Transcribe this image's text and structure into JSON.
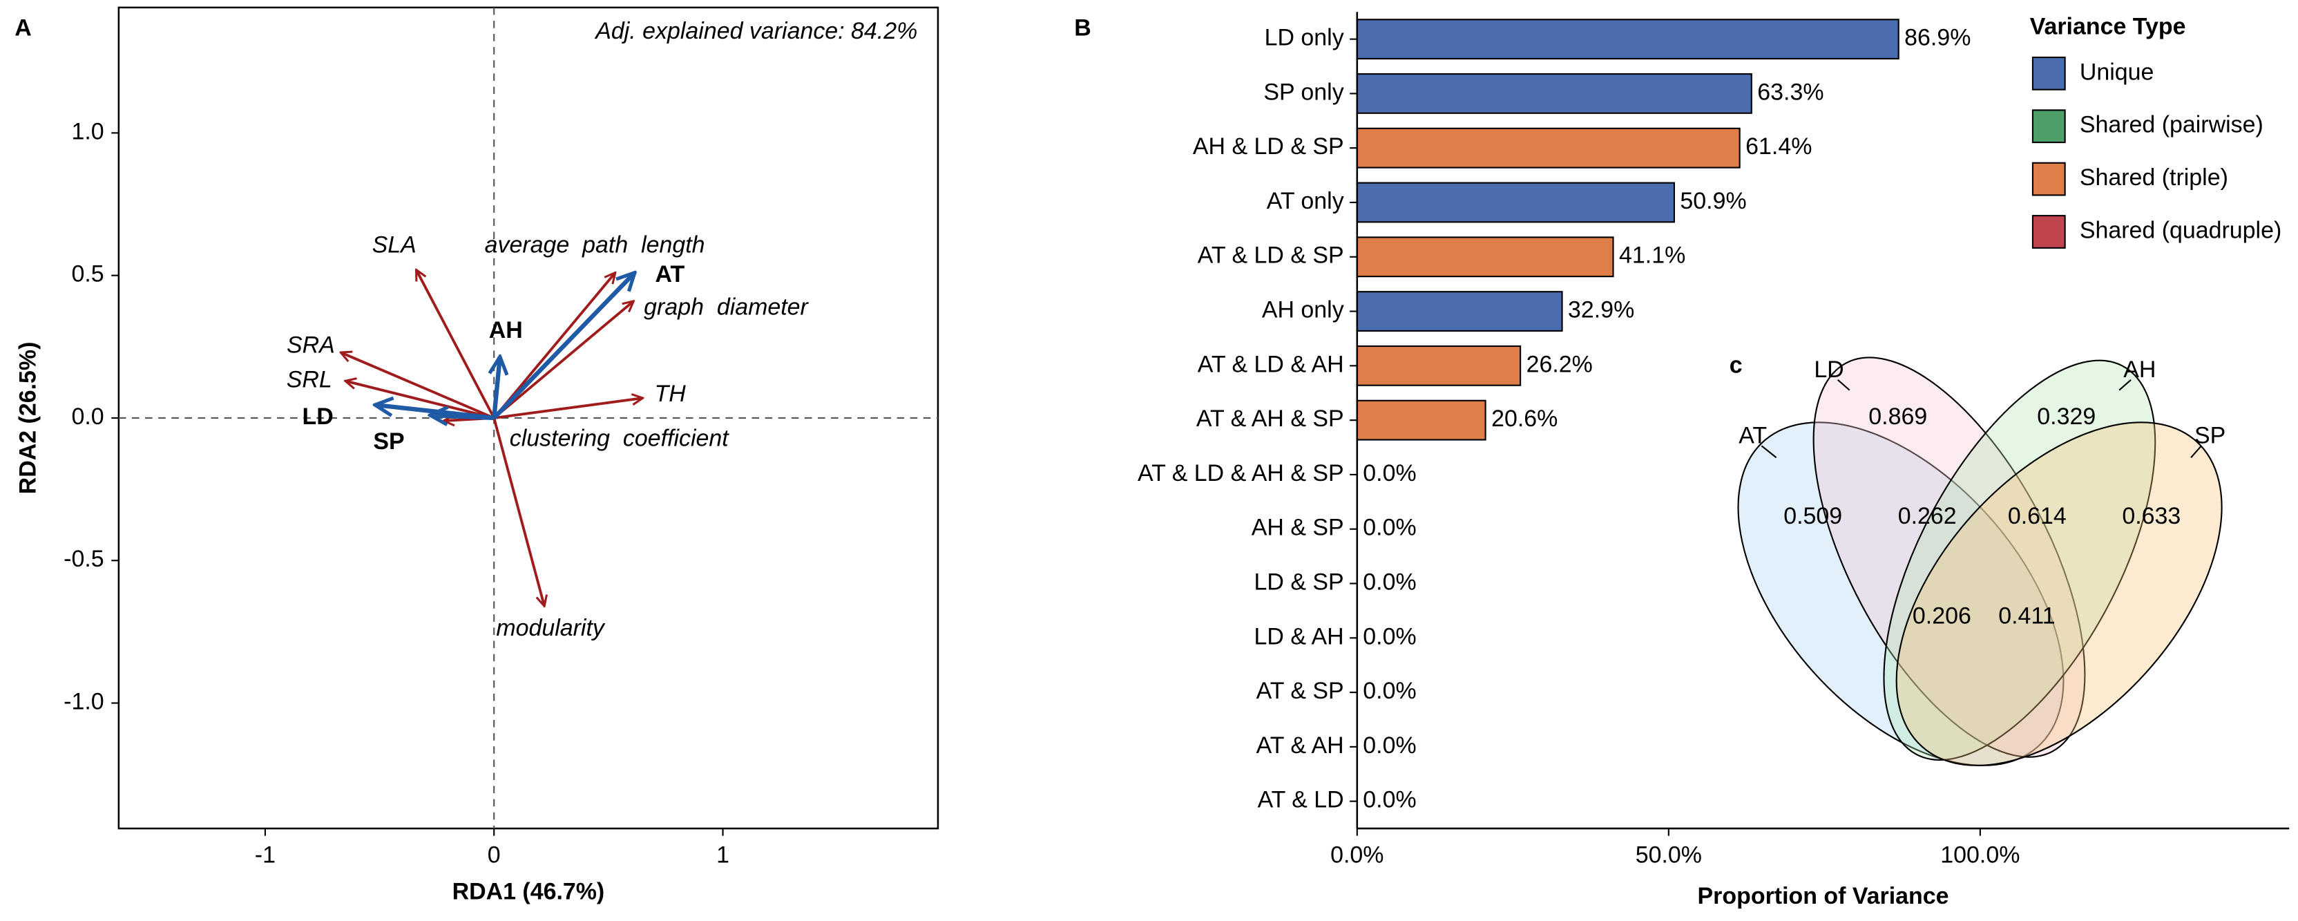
{
  "chart_data": [
    {
      "type": "biplot",
      "panel": "A",
      "annotation": "Adj. explained variance: 84.2%",
      "xlabel": "RDA1 (46.7%)",
      "ylabel": "RDA2 (26.5%)",
      "xlim": [
        -1.64,
        1.94
      ],
      "ylim": [
        -1.44,
        1.44
      ],
      "xticks": [
        -1,
        0,
        1
      ],
      "yticks": [
        {
          "value": -1,
          "label": "-1.0"
        },
        -0.5,
        {
          "value": 0,
          "label": "0.0"
        },
        0.5,
        {
          "value": 1,
          "label": "1.0"
        }
      ],
      "vectors": [
        {
          "label": "SLA",
          "x": -0.34,
          "y": 0.52,
          "color": "#a01c1c",
          "font": "italic"
        },
        {
          "label": "average  path  length",
          "x": 0.53,
          "y": 0.51,
          "color": "#a01c1c",
          "font": "italic"
        },
        {
          "label": "graph  diameter",
          "x": 0.61,
          "y": 0.41,
          "color": "#a01c1c",
          "font": "italic"
        },
        {
          "label": "SRA",
          "x": -0.67,
          "y": 0.23,
          "color": "#a01c1c",
          "font": "italic"
        },
        {
          "label": "SRL",
          "x": -0.65,
          "y": 0.13,
          "color": "#a01c1c",
          "font": "italic"
        },
        {
          "label": "TH",
          "x": 0.65,
          "y": 0.07,
          "color": "#a01c1c",
          "font": "italic"
        },
        {
          "label": "clustering  coefficient",
          "x": -0.22,
          "y": -0.01,
          "color": "#a01c1c",
          "font": "italic"
        },
        {
          "label": "modularity",
          "x": 0.22,
          "y": -0.66,
          "color": "#a01c1c",
          "font": "italic"
        },
        {
          "label": "AT",
          "x": 0.615,
          "y": 0.51,
          "color": "#1f5aa6",
          "font": "bold"
        },
        {
          "label": "AH",
          "x": 0.026,
          "y": 0.215,
          "color": "#1f5aa6",
          "font": "bold"
        },
        {
          "label": "LD",
          "x": -0.52,
          "y": 0.046,
          "color": "#1f5aa6",
          "font": "bold"
        },
        {
          "label": "SP",
          "x": -0.28,
          "y": 0.01,
          "color": "#1f5aa6",
          "font": "bold"
        }
      ]
    },
    {
      "type": "bar",
      "orientation": "horizontal",
      "panel": "B",
      "xlabel": "Proportion of Variance",
      "categories": [
        "LD only",
        "SP only",
        "AH & LD & SP",
        "AT only",
        "AT & LD & SP",
        "AH only",
        "AT & LD & AH",
        "AT & AH & SP",
        "AT & LD & AH & SP",
        "AH & SP",
        "LD & SP",
        "LD & AH",
        "AT & SP",
        "AT & AH",
        "AT & LD"
      ],
      "values": [
        86.9,
        63.3,
        61.4,
        50.9,
        41.1,
        32.9,
        26.2,
        20.6,
        0,
        0,
        0,
        0,
        0,
        0,
        0
      ],
      "value_labels": [
        "86.9%",
        "63.3%",
        "61.4%",
        "50.9%",
        "41.1%",
        "32.9%",
        "26.2%",
        "20.6%",
        "0.0%",
        "0.0%",
        "0.0%",
        "0.0%",
        "0.0%",
        "0.0%",
        "0.0%"
      ],
      "types": [
        "Unique",
        "Unique",
        "Shared (triple)",
        "Unique",
        "Shared (triple)",
        "Unique",
        "Shared (triple)",
        "Shared (triple)",
        "Shared (quadruple)",
        "Shared (pairwise)",
        "Shared (pairwise)",
        "Shared (pairwise)",
        "Shared (pairwise)",
        "Shared (pairwise)",
        "Shared (pairwise)"
      ],
      "xlim": [
        0,
        149.6
      ],
      "xticks": [
        {
          "value": 0,
          "label": "0.0%"
        },
        {
          "value": 50,
          "label": "50.0%"
        },
        {
          "value": 100,
          "label": "100.0%"
        }
      ],
      "legend": {
        "title": "Variance Type",
        "entries": [
          {
            "name": "Unique",
            "color": "#4a6db0"
          },
          {
            "name": "Shared (pairwise)",
            "color": "#4e9e6a"
          },
          {
            "name": "Shared (triple)",
            "color": "#e07e4a"
          },
          {
            "name": "Shared (quadruple)",
            "color": "#c0454e"
          }
        ]
      }
    },
    {
      "type": "venn",
      "panel": "c",
      "sets": [
        {
          "name": "AT",
          "color": "#a8d4f0"
        },
        {
          "name": "LD",
          "color": "#f7c6d0"
        },
        {
          "name": "AH",
          "color": "#b5e6b5"
        },
        {
          "name": "SP",
          "color": "#f7c37a"
        }
      ],
      "values": [
        0.869,
        0.329,
        0.509,
        0.262,
        0.614,
        0.633,
        0.206,
        0.411
      ]
    }
  ]
}
